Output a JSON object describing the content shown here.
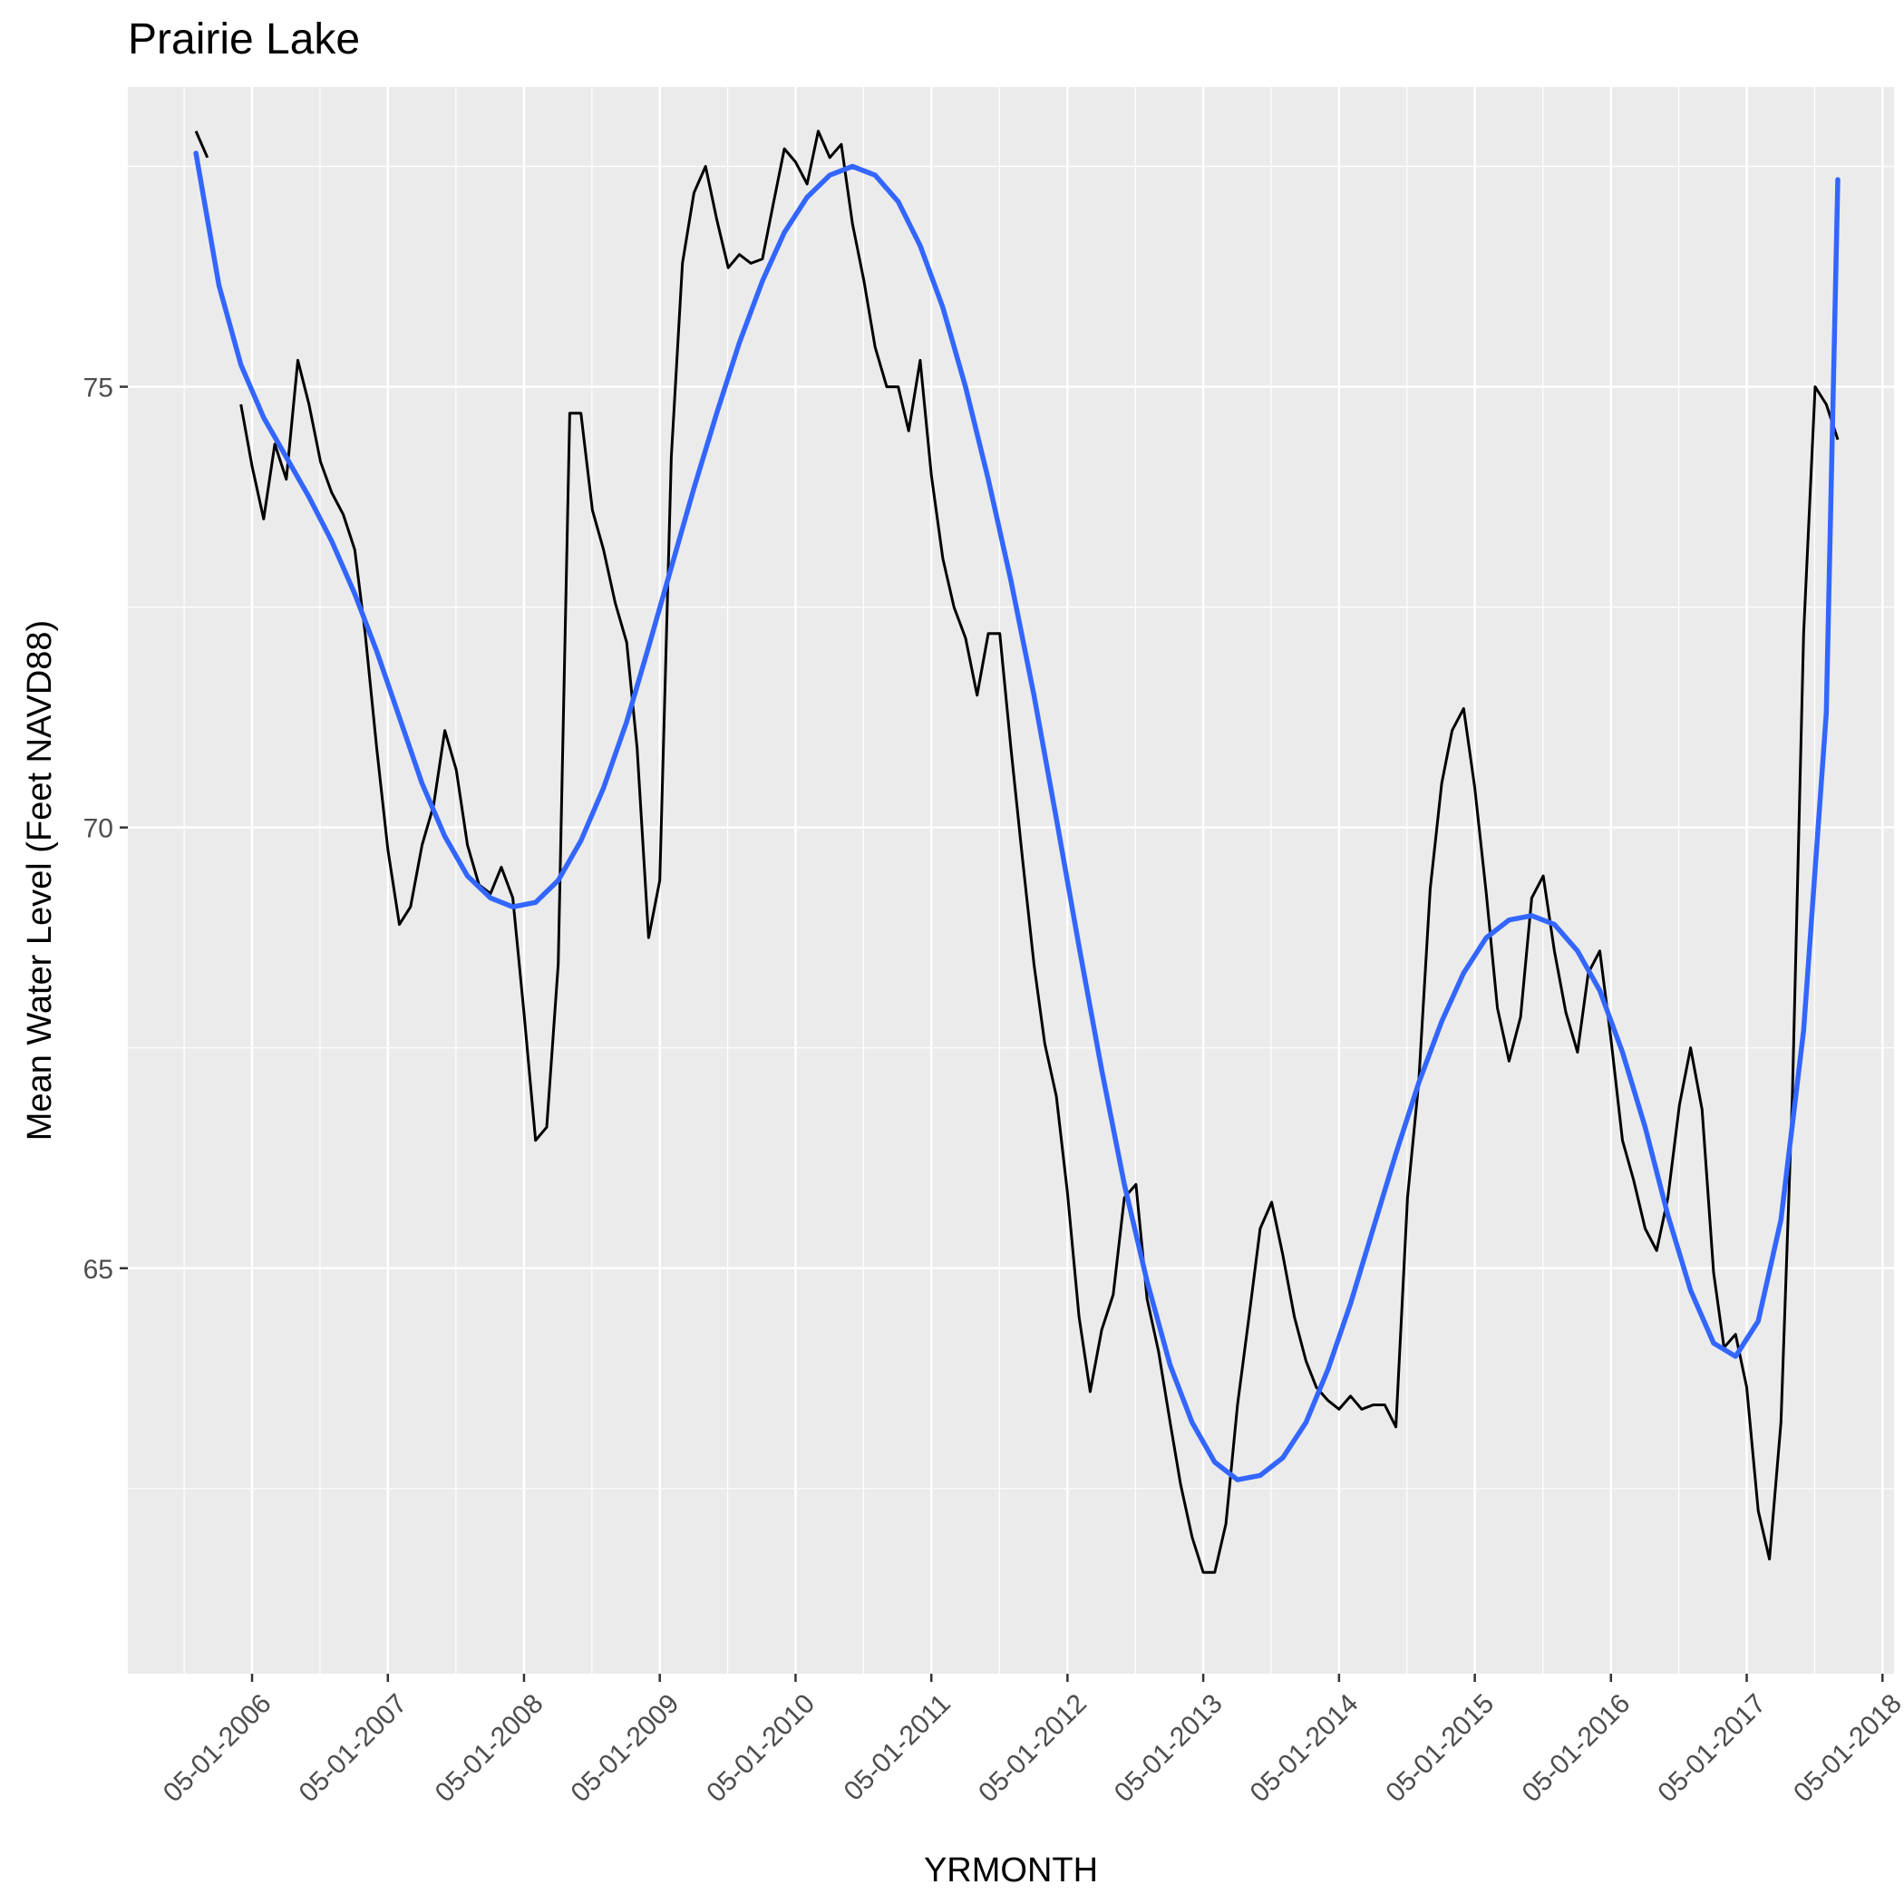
{
  "chart_data": {
    "type": "line",
    "title": "Prairie Lake",
    "xlabel": "YRMONTH",
    "ylabel": "Mean Water Level (Feet NAVD88)",
    "x_tick_labels": [
      "05-01-2006",
      "05-01-2007",
      "05-01-2008",
      "05-01-2009",
      "05-01-2010",
      "05-01-2011",
      "05-01-2012",
      "05-01-2013",
      "05-01-2014",
      "05-01-2015",
      "05-01-2016",
      "05-01-2017",
      "05-01-2018"
    ],
    "x_range": [
      "2005-06-01",
      "2018-06-01"
    ],
    "y_ticks": [
      65,
      70,
      75
    ],
    "ylim": [
      60.4,
      78.4
    ],
    "grid": true,
    "background_color": "#EBEBEB",
    "series": [
      {
        "color": "#000000",
        "segments": [
          [
            [
              "2005-12-01",
              77.9
            ],
            [
              "2006-01-01",
              77.6
            ]
          ],
          [
            [
              "2006-04-01",
              74.8
            ],
            [
              "2006-05-01",
              74.1
            ],
            [
              "2006-06-01",
              73.5
            ],
            [
              "2006-07-01",
              74.35
            ],
            [
              "2006-08-01",
              73.95
            ],
            [
              "2006-09-01",
              75.3
            ],
            [
              "2006-10-01",
              74.8
            ],
            [
              "2006-11-01",
              74.15
            ],
            [
              "2006-12-01",
              73.8
            ],
            [
              "2007-01-01",
              73.55
            ],
            [
              "2007-02-01",
              73.15
            ],
            [
              "2007-03-01",
              72.2
            ],
            [
              "2007-04-01",
              70.9
            ],
            [
              "2007-05-01",
              69.75
            ],
            [
              "2007-06-01",
              68.9
            ],
            [
              "2007-07-01",
              69.1
            ],
            [
              "2007-08-01",
              69.8
            ],
            [
              "2007-09-01",
              70.25
            ],
            [
              "2007-10-01",
              71.1
            ],
            [
              "2007-11-01",
              70.65
            ],
            [
              "2007-12-01",
              69.8
            ],
            [
              "2008-01-01",
              69.35
            ],
            [
              "2008-02-01",
              69.25
            ],
            [
              "2008-03-01",
              69.55
            ],
            [
              "2008-04-01",
              69.2
            ],
            [
              "2008-05-01",
              67.9
            ],
            [
              "2008-06-01",
              66.45
            ],
            [
              "2008-07-01",
              66.6
            ],
            [
              "2008-08-01",
              68.45
            ],
            [
              "2008-09-01",
              74.7
            ],
            [
              "2008-10-01",
              74.7
            ],
            [
              "2008-11-01",
              73.6
            ],
            [
              "2008-12-01",
              73.15
            ],
            [
              "2009-01-01",
              72.55
            ],
            [
              "2009-02-01",
              72.1
            ],
            [
              "2009-03-01",
              70.9
            ],
            [
              "2009-04-01",
              68.75
            ],
            [
              "2009-05-01",
              69.4
            ],
            [
              "2009-06-01",
              74.2
            ],
            [
              "2009-07-01",
              76.4
            ],
            [
              "2009-08-01",
              77.2
            ],
            [
              "2009-09-01",
              77.5
            ],
            [
              "2009-10-01",
              76.9
            ],
            [
              "2009-11-01",
              76.35
            ],
            [
              "2009-12-01",
              76.5
            ],
            [
              "2010-01-01",
              76.4
            ],
            [
              "2010-02-01",
              76.45
            ],
            [
              "2010-03-01",
              77.05
            ],
            [
              "2010-04-01",
              77.7
            ],
            [
              "2010-05-01",
              77.55
            ],
            [
              "2010-06-01",
              77.3
            ],
            [
              "2010-07-01",
              77.9
            ],
            [
              "2010-08-01",
              77.6
            ],
            [
              "2010-09-01",
              77.75
            ],
            [
              "2010-10-01",
              76.85
            ],
            [
              "2010-11-01",
              76.2
            ],
            [
              "2010-12-01",
              75.45
            ],
            [
              "2011-01-01",
              75.0
            ],
            [
              "2011-02-01",
              75.0
            ],
            [
              "2011-03-01",
              74.5
            ],
            [
              "2011-04-01",
              75.3
            ],
            [
              "2011-05-01",
              74.0
            ],
            [
              "2011-06-01",
              73.05
            ],
            [
              "2011-07-01",
              72.5
            ],
            [
              "2011-08-01",
              72.15
            ],
            [
              "2011-09-01",
              71.5
            ],
            [
              "2011-10-01",
              72.2
            ],
            [
              "2011-11-01",
              72.2
            ],
            [
              "2011-12-01",
              70.9
            ],
            [
              "2012-01-01",
              69.65
            ],
            [
              "2012-02-01",
              68.45
            ],
            [
              "2012-03-01",
              67.55
            ],
            [
              "2012-04-01",
              66.95
            ],
            [
              "2012-05-01",
              65.85
            ],
            [
              "2012-06-01",
              64.45
            ],
            [
              "2012-07-01",
              63.6
            ],
            [
              "2012-08-01",
              64.3
            ],
            [
              "2012-09-01",
              64.7
            ],
            [
              "2012-10-01",
              65.8
            ],
            [
              "2012-11-01",
              65.95
            ],
            [
              "2012-12-01",
              64.65
            ],
            [
              "2013-01-01",
              64.05
            ],
            [
              "2013-02-01",
              63.25
            ],
            [
              "2013-03-01",
              62.55
            ],
            [
              "2013-04-01",
              61.95
            ],
            [
              "2013-05-01",
              61.55
            ],
            [
              "2013-06-01",
              61.55
            ],
            [
              "2013-07-01",
              62.1
            ],
            [
              "2013-08-01",
              63.45
            ],
            [
              "2013-09-01",
              64.45
            ],
            [
              "2013-10-01",
              65.45
            ],
            [
              "2013-11-01",
              65.75
            ],
            [
              "2013-12-01",
              65.15
            ],
            [
              "2014-01-01",
              64.45
            ],
            [
              "2014-02-01",
              63.95
            ],
            [
              "2014-03-01",
              63.65
            ],
            [
              "2014-04-01",
              63.5
            ],
            [
              "2014-05-01",
              63.4
            ],
            [
              "2014-06-01",
              63.55
            ],
            [
              "2014-07-01",
              63.4
            ],
            [
              "2014-08-01",
              63.45
            ],
            [
              "2014-09-01",
              63.45
            ],
            [
              "2014-10-01",
              63.2
            ],
            [
              "2014-11-01",
              65.8
            ],
            [
              "2014-12-01",
              67.1
            ],
            [
              "2015-01-01",
              69.3
            ],
            [
              "2015-02-01",
              70.5
            ],
            [
              "2015-03-01",
              71.1
            ],
            [
              "2015-04-01",
              71.35
            ],
            [
              "2015-05-01",
              70.45
            ],
            [
              "2015-06-01",
              69.25
            ],
            [
              "2015-07-01",
              67.95
            ],
            [
              "2015-08-01",
              67.35
            ],
            [
              "2015-09-01",
              67.85
            ],
            [
              "2015-10-01",
              69.2
            ],
            [
              "2015-11-01",
              69.45
            ],
            [
              "2015-12-01",
              68.6
            ],
            [
              "2016-01-01",
              67.9
            ],
            [
              "2016-02-01",
              67.45
            ],
            [
              "2016-03-01",
              68.35
            ],
            [
              "2016-04-01",
              68.6
            ],
            [
              "2016-05-01",
              67.6
            ],
            [
              "2016-06-01",
              66.45
            ],
            [
              "2016-07-01",
              66.0
            ],
            [
              "2016-08-01",
              65.45
            ],
            [
              "2016-09-01",
              65.2
            ],
            [
              "2016-10-01",
              65.8
            ],
            [
              "2016-11-01",
              66.85
            ],
            [
              "2016-12-01",
              67.5
            ],
            [
              "2017-01-01",
              66.8
            ],
            [
              "2017-02-01",
              64.95
            ],
            [
              "2017-03-01",
              64.1
            ],
            [
              "2017-04-01",
              64.25
            ],
            [
              "2017-05-01",
              63.65
            ],
            [
              "2017-06-01",
              62.25
            ],
            [
              "2017-07-01",
              61.7
            ],
            [
              "2017-08-01",
              63.25
            ],
            [
              "2017-09-01",
              67.0
            ],
            [
              "2017-10-01",
              72.2
            ],
            [
              "2017-11-01",
              75.0
            ],
            [
              "2017-12-01",
              74.8
            ],
            [
              "2018-01-01",
              74.4
            ]
          ]
        ]
      },
      {
        "color": "#3366FF",
        "smooth": true,
        "points": [
          [
            "2005-12-01",
            77.65
          ],
          [
            "2006-02-01",
            76.15
          ],
          [
            "2006-04-01",
            75.25
          ],
          [
            "2006-06-01",
            74.65
          ],
          [
            "2006-08-01",
            74.2
          ],
          [
            "2006-10-01",
            73.75
          ],
          [
            "2006-12-01",
            73.25
          ],
          [
            "2007-02-01",
            72.65
          ],
          [
            "2007-04-01",
            72.0
          ],
          [
            "2007-06-01",
            71.25
          ],
          [
            "2007-08-01",
            70.5
          ],
          [
            "2007-10-01",
            69.9
          ],
          [
            "2007-12-01",
            69.45
          ],
          [
            "2008-02-01",
            69.2
          ],
          [
            "2008-04-01",
            69.1
          ],
          [
            "2008-06-01",
            69.15
          ],
          [
            "2008-08-01",
            69.4
          ],
          [
            "2008-10-01",
            69.85
          ],
          [
            "2008-12-01",
            70.45
          ],
          [
            "2009-02-01",
            71.2
          ],
          [
            "2009-04-01",
            72.05
          ],
          [
            "2009-06-01",
            72.95
          ],
          [
            "2009-08-01",
            73.85
          ],
          [
            "2009-10-01",
            74.7
          ],
          [
            "2009-12-01",
            75.5
          ],
          [
            "2010-02-01",
            76.2
          ],
          [
            "2010-04-01",
            76.75
          ],
          [
            "2010-06-01",
            77.15
          ],
          [
            "2010-08-01",
            77.4
          ],
          [
            "2010-10-01",
            77.5
          ],
          [
            "2010-12-01",
            77.4
          ],
          [
            "2011-02-01",
            77.1
          ],
          [
            "2011-04-01",
            76.6
          ],
          [
            "2011-06-01",
            75.9
          ],
          [
            "2011-08-01",
            75.0
          ],
          [
            "2011-10-01",
            73.95
          ],
          [
            "2011-12-01",
            72.8
          ],
          [
            "2012-02-01",
            71.5
          ],
          [
            "2012-04-01",
            70.1
          ],
          [
            "2012-06-01",
            68.65
          ],
          [
            "2012-08-01",
            67.25
          ],
          [
            "2012-10-01",
            65.95
          ],
          [
            "2012-12-01",
            64.85
          ],
          [
            "2013-02-01",
            63.9
          ],
          [
            "2013-04-01",
            63.25
          ],
          [
            "2013-06-01",
            62.8
          ],
          [
            "2013-08-01",
            62.6
          ],
          [
            "2013-10-01",
            62.65
          ],
          [
            "2013-12-01",
            62.85
          ],
          [
            "2014-02-01",
            63.25
          ],
          [
            "2014-04-01",
            63.85
          ],
          [
            "2014-06-01",
            64.6
          ],
          [
            "2014-08-01",
            65.45
          ],
          [
            "2014-10-01",
            66.3
          ],
          [
            "2014-12-01",
            67.1
          ],
          [
            "2015-02-01",
            67.8
          ],
          [
            "2015-04-01",
            68.35
          ],
          [
            "2015-06-01",
            68.75
          ],
          [
            "2015-08-01",
            68.95
          ],
          [
            "2015-10-01",
            69.0
          ],
          [
            "2015-12-01",
            68.9
          ],
          [
            "2016-02-01",
            68.6
          ],
          [
            "2016-04-01",
            68.15
          ],
          [
            "2016-06-01",
            67.45
          ],
          [
            "2016-08-01",
            66.6
          ],
          [
            "2016-10-01",
            65.6
          ],
          [
            "2016-12-01",
            64.75
          ],
          [
            "2017-02-01",
            64.15
          ],
          [
            "2017-04-01",
            64.0
          ],
          [
            "2017-06-01",
            64.4
          ],
          [
            "2017-08-01",
            65.55
          ],
          [
            "2017-10-01",
            67.7
          ],
          [
            "2017-12-01",
            71.3
          ],
          [
            "2018-01-01",
            77.35
          ]
        ]
      }
    ]
  }
}
